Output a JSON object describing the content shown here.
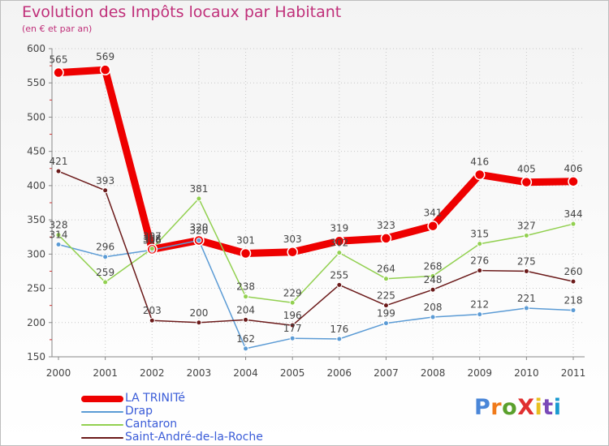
{
  "chart_data": {
    "type": "line",
    "title": "Evolution des Impôts locaux par Habitant",
    "subtitle": "(en € et par an)",
    "xlabel": "",
    "ylabel": "",
    "x": [
      "2000",
      "2001",
      "2002",
      "2003",
      "2004",
      "2005",
      "2006",
      "2007",
      "2008",
      "2009",
      "2010",
      "2011"
    ],
    "ylim": [
      150,
      600
    ],
    "yticks": [
      150,
      200,
      250,
      300,
      350,
      400,
      450,
      500,
      550,
      600
    ],
    "series": [
      {
        "name": "LA TRINITé",
        "color": "#ee0000",
        "values": [
          565,
          569,
          307,
          320,
          301,
          303,
          319,
          323,
          341,
          416,
          405,
          406
        ]
      },
      {
        "name": "Drap",
        "color": "#5b9bd5",
        "values": [
          314,
          296,
          306,
          320,
          162,
          177,
          176,
          199,
          208,
          212,
          221,
          218
        ]
      },
      {
        "name": "Cantaron",
        "color": "#92d050",
        "values": [
          328,
          259,
          308,
          381,
          238,
          229,
          302,
          264,
          268,
          315,
          327,
          344
        ]
      },
      {
        "name": "Saint-André-de-la-Roche",
        "color": "#6b1a1a",
        "values": [
          421,
          393,
          203,
          200,
          204,
          196,
          255,
          225,
          248,
          276,
          275,
          260
        ]
      }
    ]
  },
  "logo": {
    "text": "ProXiti",
    "letters": [
      "P",
      "r",
      "o",
      "X",
      "i",
      "t",
      "i"
    ],
    "colors": [
      "#4a86d8",
      "#f07a1a",
      "#5aa02c",
      "#e03030",
      "#e8c020",
      "#7a4ab8",
      "#1a9ad0"
    ]
  }
}
